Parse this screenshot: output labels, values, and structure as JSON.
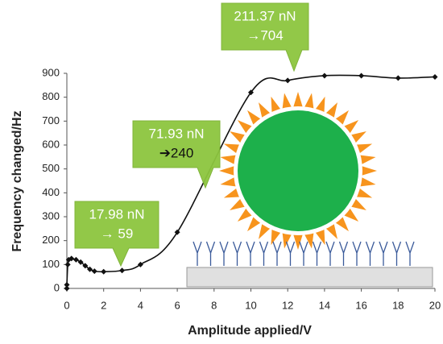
{
  "chart_data": {
    "type": "line",
    "xlabel": "Amplitude applied/V",
    "ylabel": "Frequency changed/Hz",
    "x": [
      0,
      0,
      0.05,
      0.1,
      0.25,
      0.5,
      0.75,
      1,
      1.25,
      1.5,
      2,
      3,
      4,
      6,
      10,
      12,
      14,
      16,
      18,
      20
    ],
    "values": [
      0,
      15,
      100,
      120,
      125,
      120,
      110,
      95,
      80,
      72,
      70,
      75,
      100,
      235,
      820,
      870,
      890,
      890,
      880,
      885
    ],
    "color": "#111111",
    "xlim": [
      0,
      20
    ],
    "xticks": [
      0,
      2,
      4,
      6,
      8,
      10,
      12,
      14,
      16,
      18,
      20
    ],
    "ylim": [
      0,
      900
    ],
    "yticks": [
      0,
      100,
      200,
      300,
      400,
      500,
      600,
      700,
      800,
      900
    ],
    "annotations": [
      {
        "lines": [
          "17.98 nN",
          "→ 59"
        ]
      },
      {
        "lines": [
          "71.93 nN",
          "➔240"
        ]
      },
      {
        "lines": [
          "211.37 nN",
          "→704"
        ]
      }
    ]
  }
}
